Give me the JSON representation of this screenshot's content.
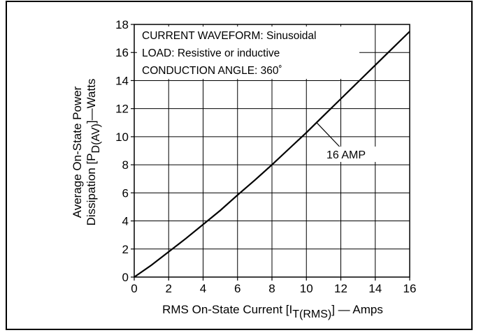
{
  "chart_data": {
    "type": "line",
    "title": "",
    "xlabel": {
      "main": "RMS On-State Current [I",
      "sub": "T(RMS)",
      "tail": "] — Amps"
    },
    "ylabel": {
      "line1": "Average On-State Power",
      "line2_main": "Dissipation [P",
      "line2_sub": "D(AV)",
      "line2_tail": "]—Watts"
    },
    "xlim": [
      0,
      16
    ],
    "ylim": [
      0,
      18
    ],
    "x_ticks": [
      0,
      2,
      4,
      6,
      8,
      10,
      12,
      14,
      16
    ],
    "y_ticks": [
      0,
      2,
      4,
      6,
      8,
      10,
      12,
      14,
      16,
      18
    ],
    "grid": true,
    "annotations": [
      "CURRENT WAVEFORM: Sinusoidal",
      "LOAD: Resistive or inductive",
      "CONDUCTION ANGLE: 360˚"
    ],
    "series": [
      {
        "name": "16 AMP",
        "x": [
          0,
          1,
          2,
          3,
          4,
          5,
          6,
          7,
          8,
          9,
          10,
          11,
          12,
          13,
          14,
          15,
          16
        ],
        "y": [
          0,
          0.85,
          1.8,
          2.75,
          3.75,
          4.75,
          5.85,
          6.9,
          8.0,
          9.15,
          10.3,
          11.5,
          12.7,
          13.9,
          15.1,
          16.3,
          17.5
        ]
      }
    ]
  }
}
